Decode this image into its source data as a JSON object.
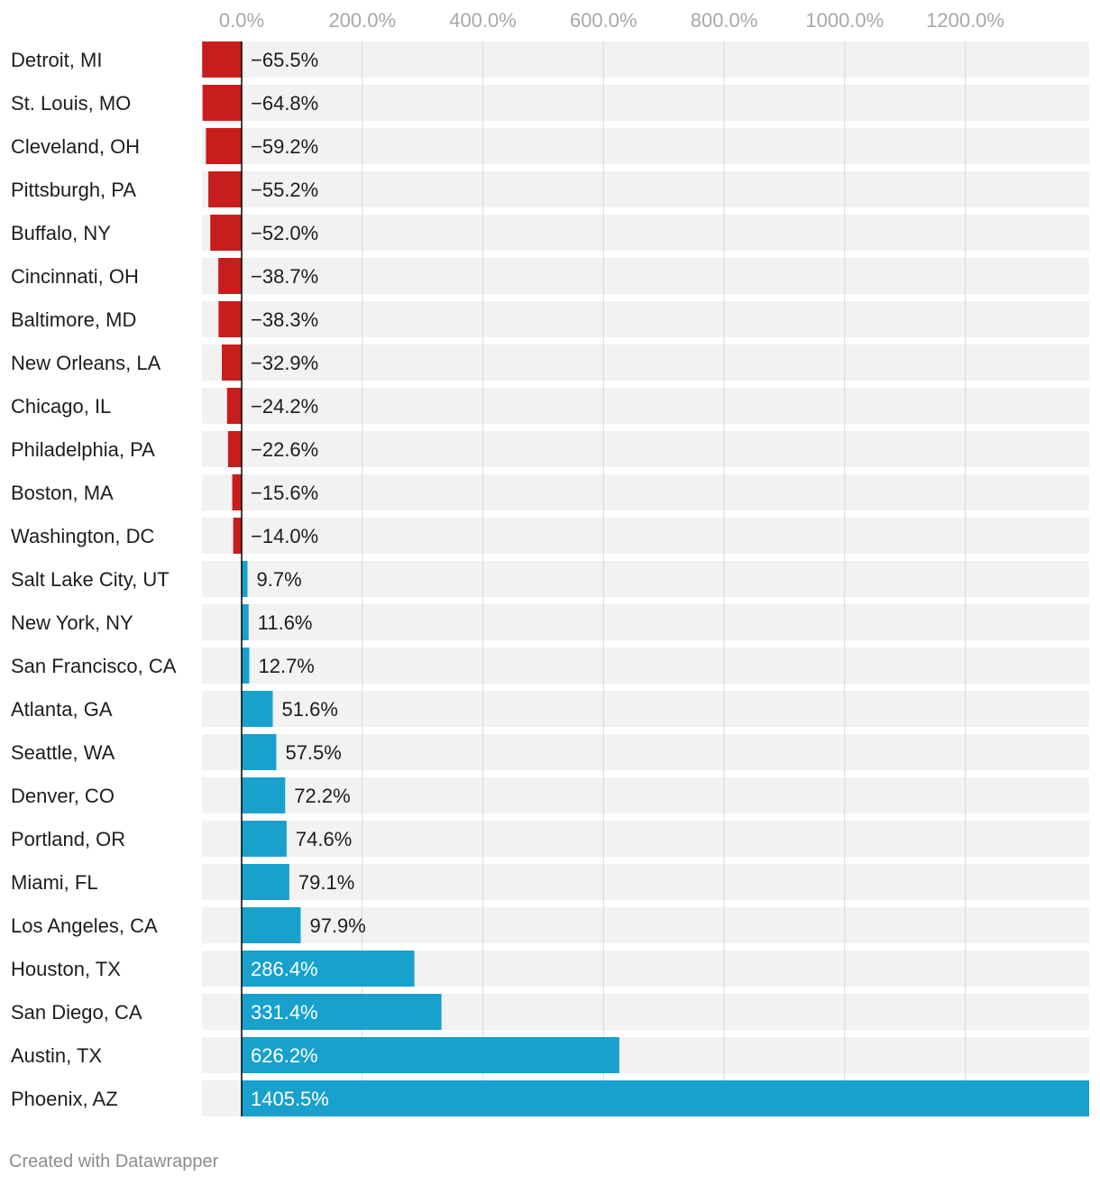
{
  "chart_data": {
    "type": "bar",
    "orientation": "horizontal",
    "title": "",
    "xlabel": "",
    "ylabel": "",
    "xlim": [
      -65.5,
      1405.5
    ],
    "ticks": [
      {
        "value": 0,
        "label": "0.0%"
      },
      {
        "value": 200,
        "label": "200.0%"
      },
      {
        "value": 400,
        "label": "400.0%"
      },
      {
        "value": 600,
        "label": "600.0%"
      },
      {
        "value": 800,
        "label": "800.0%"
      },
      {
        "value": 1000,
        "label": "1000.0%"
      },
      {
        "value": 1200,
        "label": "1200.0%"
      }
    ],
    "grid": true,
    "colors": {
      "negative": "#c71e1d",
      "positive": "#18a1cd",
      "row_background": "#f2f2f2",
      "grid": "#d9d9d9",
      "zero_line": "#000000"
    },
    "categories": [
      "Detroit, MI",
      "St. Louis, MO",
      "Cleveland, OH",
      "Pittsburgh, PA",
      "Buffalo, NY",
      "Cincinnati, OH",
      "Baltimore, MD",
      "New Orleans, LA",
      "Chicago, IL",
      "Philadelphia, PA",
      "Boston, MA",
      "Washington, DC",
      "Salt Lake City, UT",
      "New York, NY",
      "San Francisco, CA",
      "Atlanta, GA",
      "Seattle, WA",
      "Denver, CO",
      "Portland, OR",
      "Miami, FL",
      "Los Angeles, CA",
      "Houston, TX",
      "San Diego, CA",
      "Austin, TX",
      "Phoenix, AZ"
    ],
    "values": [
      -65.5,
      -64.8,
      -59.2,
      -55.2,
      -52.0,
      -38.7,
      -38.3,
      -32.9,
      -24.2,
      -22.6,
      -15.6,
      -14.0,
      9.7,
      11.6,
      12.7,
      51.6,
      57.5,
      72.2,
      74.6,
      79.1,
      97.9,
      286.4,
      331.4,
      626.2,
      1405.5
    ],
    "value_labels": [
      "−65.5%",
      "−64.8%",
      "−59.2%",
      "−55.2%",
      "−52.0%",
      "−38.7%",
      "−38.3%",
      "−32.9%",
      "−24.2%",
      "−22.6%",
      "−15.6%",
      "−14.0%",
      "9.7%",
      "11.6%",
      "12.7%",
      "51.6%",
      "57.5%",
      "72.2%",
      "74.6%",
      "79.1%",
      "97.9%",
      "286.4%",
      "331.4%",
      "626.2%",
      "1405.5%"
    ]
  },
  "footer": {
    "credit": "Created with Datawrapper"
  }
}
